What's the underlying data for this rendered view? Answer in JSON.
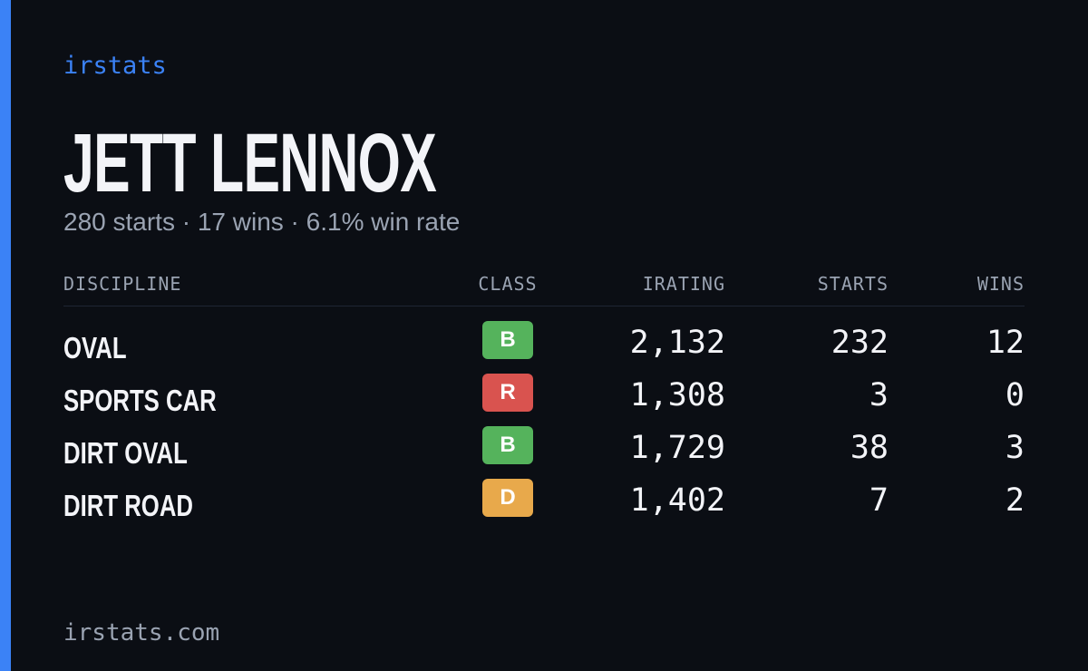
{
  "header": {
    "brand": "irstats",
    "title": "JETT LENNOX",
    "subtitle": "280 starts · 17 wins · 6.1% win rate"
  },
  "table": {
    "columns": [
      "DISCIPLINE",
      "CLASS",
      "IRATING",
      "STARTS",
      "WINS"
    ],
    "rows": [
      {
        "discipline": "OVAL",
        "class": "B",
        "class_color": "#55b35c",
        "irating": "2,132",
        "starts": "232",
        "wins": "12"
      },
      {
        "discipline": "SPORTS CAR",
        "class": "R",
        "class_color": "#d9534f",
        "irating": "1,308",
        "starts": "3",
        "wins": "0"
      },
      {
        "discipline": "DIRT OVAL",
        "class": "B",
        "class_color": "#55b35c",
        "irating": "1,729",
        "starts": "38",
        "wins": "3"
      },
      {
        "discipline": "DIRT ROAD",
        "class": "D",
        "class_color": "#e8a94b",
        "irating": "1,402",
        "starts": "7",
        "wins": "2"
      }
    ]
  },
  "footer": {
    "url": "irstats.com"
  }
}
